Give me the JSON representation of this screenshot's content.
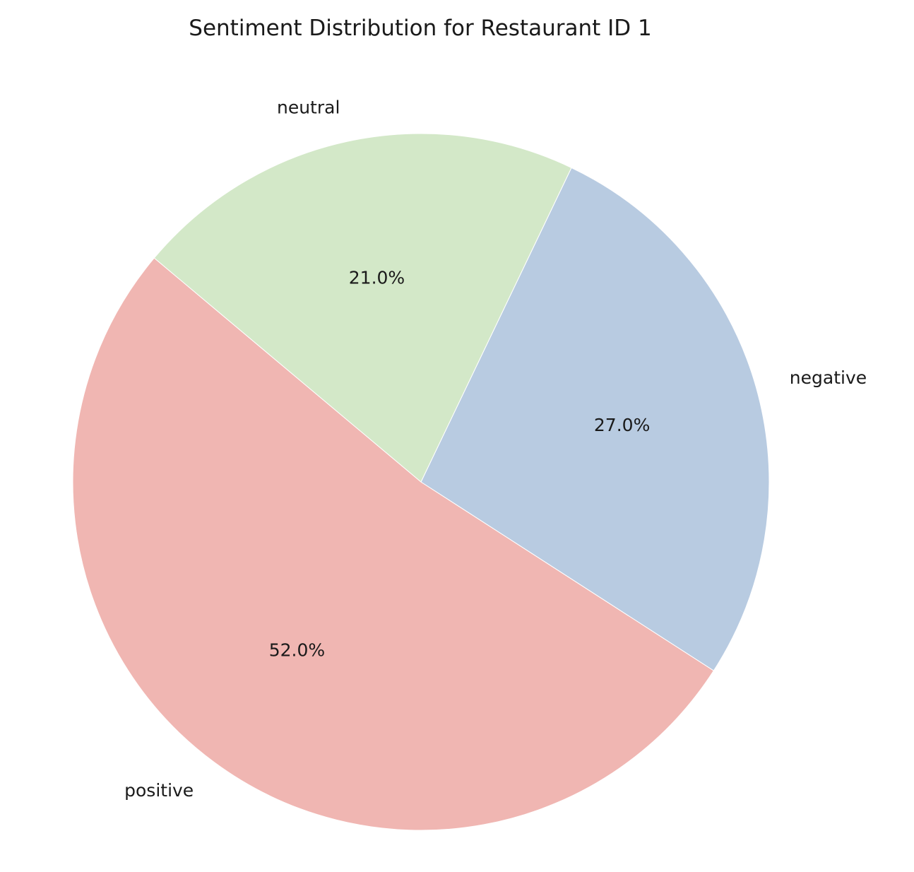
{
  "chart_data": {
    "type": "pie",
    "title": "Sentiment Distribution for Restaurant ID 1",
    "categories": [
      "positive",
      "negative",
      "neutral"
    ],
    "values": [
      52.0,
      27.0,
      21.0
    ],
    "value_labels": [
      "52.0%",
      "27.0%",
      "21.0%"
    ],
    "colors": [
      "#f0b6b2",
      "#b8cbe1",
      "#d3e8c8"
    ],
    "legend": "none"
  }
}
